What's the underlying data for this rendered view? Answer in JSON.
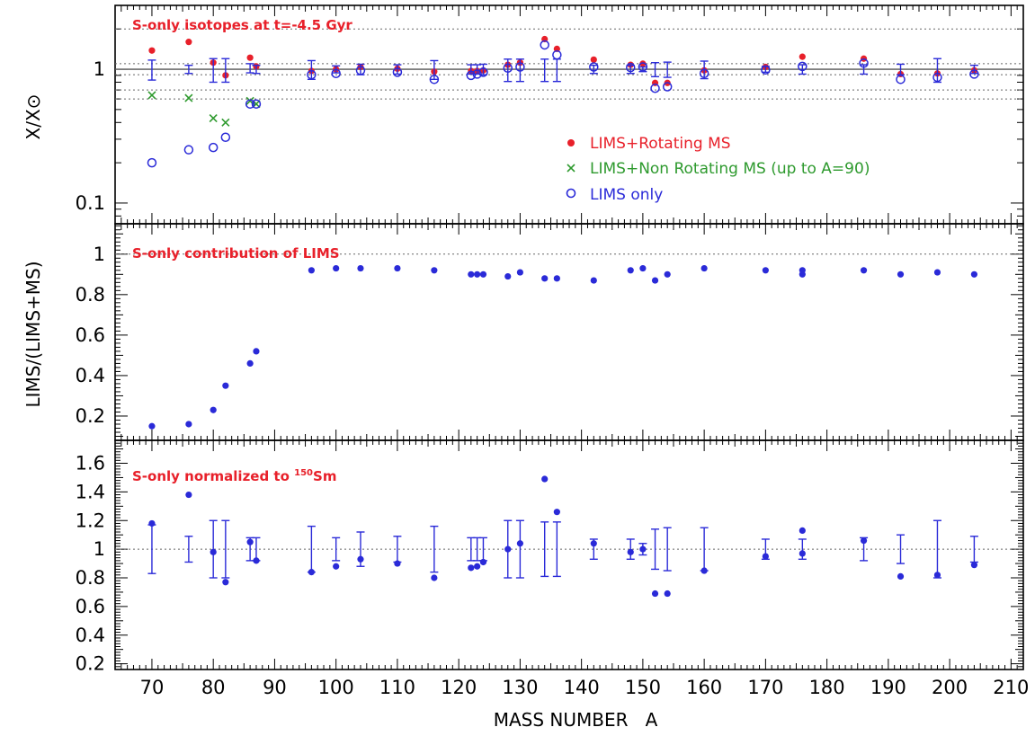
{
  "chart_data": {
    "type": "scatter",
    "shared_x": {
      "label": "MASS NUMBER   A",
      "range": [
        64,
        212
      ],
      "ticks": [
        70,
        80,
        90,
        100,
        110,
        120,
        130,
        140,
        150,
        160,
        170,
        180,
        190,
        200,
        210
      ]
    },
    "panels": [
      {
        "id": "top",
        "title": "S-only isotopes at t=-4.5 Gyr",
        "ylabel": "X/X⊙",
        "yscale": "log",
        "ylim": [
          0.07,
          3.0
        ],
        "ytick_labels": [
          {
            "value": 0.1,
            "label": "0.1"
          },
          {
            "value": 1,
            "label": "1"
          }
        ],
        "reference_lines": [
          2.0,
          1.1,
          1.0,
          0.91,
          0.7,
          0.6
        ],
        "legend": {
          "placement": "center-right",
          "entries": [
            {
              "series": "rot",
              "label": "LIMS+Rotating MS"
            },
            {
              "series": "nonrot",
              "label": "LIMS+Non Rotating MS (up to A=90)"
            },
            {
              "series": "lims",
              "label": "LIMS only"
            }
          ]
        },
        "series": [
          {
            "key": "rot",
            "marker": "dot",
            "color": "#e8202a",
            "x": [
              70,
              76,
              80,
              82,
              86,
              87,
              96,
              100,
              104,
              110,
              116,
              122,
              123,
              124,
              128,
              130,
              134,
              136,
              142,
              148,
              150,
              152,
              154,
              160,
              170,
              176,
              186,
              192,
              198,
              204
            ],
            "y": [
              1.38,
              1.6,
              1.12,
              0.9,
              1.22,
              1.05,
              0.97,
              1.0,
              1.04,
              1.01,
              0.96,
              0.97,
              0.97,
              0.98,
              1.08,
              1.12,
              1.68,
              1.42,
              1.18,
              1.08,
              1.1,
              0.79,
              0.79,
              0.98,
              1.04,
              1.24,
              1.2,
              0.92,
              0.93,
              0.98
            ]
          },
          {
            "key": "nonrot",
            "marker": "cross",
            "color": "#2e9a2e",
            "x": [
              70,
              76,
              80,
              82,
              86,
              87
            ],
            "y": [
              0.64,
              0.61,
              0.43,
              0.4,
              0.58,
              0.55
            ]
          },
          {
            "key": "lims",
            "marker": "open-circle",
            "color": "#2a2ad8",
            "x": [
              70,
              76,
              80,
              82,
              86,
              87,
              96,
              100,
              104,
              110,
              116,
              122,
              123,
              124,
              128,
              130,
              134,
              136,
              142,
              148,
              150,
              152,
              154,
              160,
              170,
              176,
              186,
              192,
              198,
              204
            ],
            "y": [
              0.2,
              0.25,
              0.26,
              0.31,
              0.55,
              0.55,
              0.91,
              0.93,
              0.98,
              0.95,
              0.84,
              0.9,
              0.92,
              0.95,
              1.02,
              1.04,
              1.52,
              1.28,
              1.04,
              1.03,
              1.04,
              0.72,
              0.74,
              0.93,
              0.99,
              1.05,
              1.11,
              0.84,
              0.87,
              0.92
            ]
          },
          {
            "key": "err",
            "marker": "errorbar",
            "color": "#2a2ad8",
            "x": [
              70,
              76,
              80,
              82,
              86,
              87,
              96,
              100,
              104,
              110,
              116,
              122,
              123,
              124,
              128,
              130,
              134,
              136,
              142,
              148,
              150,
              152,
              154,
              160,
              170,
              176,
              186,
              192,
              198,
              204
            ],
            "y": [
              1.0,
              1.0,
              1.0,
              1.0,
              1.02,
              1.0,
              1.0,
              1.0,
              1.0,
              1.0,
              1.0,
              1.0,
              1.0,
              1.0,
              1.0,
              1.0,
              1.0,
              1.0,
              1.0,
              1.0,
              1.0,
              1.0,
              1.0,
              1.0,
              1.0,
              1.0,
              1.0,
              1.0,
              1.0,
              1.0
            ],
            "err": [
              0.17,
              0.07,
              0.2,
              0.2,
              0.08,
              0.07,
              0.16,
              0.06,
              0.09,
              0.08,
              0.16,
              0.08,
              0.08,
              0.09,
              0.19,
              0.19,
              0.19,
              0.19,
              0.07,
              0.07,
              0.04,
              0.12,
              0.13,
              0.15,
              0.05,
              0.08,
              0.08,
              0.09,
              0.2,
              0.07
            ]
          }
        ]
      },
      {
        "id": "middle",
        "title": "S-only contribution of LIMS",
        "ylabel": "LIMS/(LIMS+MS)",
        "yscale": "linear",
        "ylim": [
          0.08,
          1.15
        ],
        "yticks": [
          0.2,
          0.4,
          0.6,
          0.8,
          1
        ],
        "ytick_labels": [
          "0.2",
          "0.4",
          "0.6",
          "0.8",
          "1"
        ],
        "reference_lines": [
          1.0
        ],
        "series": [
          {
            "key": "frac",
            "marker": "dot",
            "color": "#2a2ad8",
            "x": [
              70,
              76,
              80,
              82,
              86,
              87,
              96,
              100,
              104,
              110,
              116,
              122,
              123,
              124,
              128,
              130,
              134,
              136,
              142,
              148,
              150,
              152,
              154,
              160,
              170,
              176,
              176,
              186,
              192,
              198,
              204
            ],
            "y": [
              0.15,
              0.16,
              0.23,
              0.35,
              0.46,
              0.52,
              0.92,
              0.93,
              0.93,
              0.93,
              0.92,
              0.9,
              0.9,
              0.9,
              0.89,
              0.91,
              0.88,
              0.88,
              0.87,
              0.92,
              0.93,
              0.87,
              0.9,
              0.93,
              0.92,
              0.9,
              0.92,
              0.92,
              0.9,
              0.91,
              0.9
            ]
          }
        ]
      },
      {
        "id": "bottom",
        "title": "S-only normalized to ",
        "title_superscript": "150",
        "title_suffix": "Sm",
        "ylabel": "",
        "yscale": "linear",
        "ylim": [
          0.16,
          1.76
        ],
        "yticks": [
          0.2,
          0.4,
          0.6,
          0.8,
          1,
          1.2,
          1.4,
          1.6
        ],
        "ytick_labels": [
          "0.2",
          "0.4",
          "0.6",
          "0.8",
          "1",
          "1.2",
          "1.4",
          "1.6"
        ],
        "reference_lines": [
          1.0
        ],
        "series": [
          {
            "key": "norm",
            "marker": "dot",
            "color": "#2a2ad8",
            "x": [
              70,
              76,
              80,
              82,
              86,
              87,
              96,
              100,
              104,
              110,
              116,
              122,
              123,
              124,
              128,
              130,
              134,
              136,
              142,
              148,
              150,
              152,
              154,
              160,
              170,
              176,
              176,
              186,
              192,
              198,
              204
            ],
            "y": [
              1.18,
              1.38,
              0.98,
              0.77,
              1.05,
              0.92,
              0.84,
              0.88,
              0.93,
              0.9,
              0.8,
              0.87,
              0.88,
              0.91,
              1.0,
              1.04,
              1.49,
              1.26,
              1.04,
              0.98,
              1.0,
              0.69,
              0.69,
              0.85,
              0.95,
              0.97,
              1.13,
              1.06,
              0.81,
              0.82,
              0.89
            ]
          },
          {
            "key": "normerr",
            "marker": "errorbar",
            "color": "#2a2ad8",
            "x": [
              70,
              76,
              80,
              82,
              86,
              87,
              96,
              100,
              104,
              110,
              116,
              122,
              123,
              124,
              128,
              130,
              134,
              136,
              142,
              148,
              150,
              152,
              154,
              160,
              170,
              176,
              186,
              192,
              198,
              204
            ],
            "y": [
              1.0,
              1.0,
              1.0,
              1.0,
              1.0,
              1.0,
              1.0,
              1.0,
              1.0,
              1.0,
              1.0,
              1.0,
              1.0,
              1.0,
              1.0,
              1.0,
              1.0,
              1.0,
              1.0,
              1.0,
              1.0,
              1.0,
              1.0,
              1.0,
              1.0,
              1.0,
              1.0,
              1.0,
              1.0,
              1.0
            ],
            "err": [
              0.17,
              0.09,
              0.2,
              0.2,
              0.08,
              0.08,
              0.16,
              0.08,
              0.12,
              0.09,
              0.16,
              0.08,
              0.08,
              0.08,
              0.2,
              0.2,
              0.19,
              0.19,
              0.07,
              0.07,
              0.04,
              0.14,
              0.15,
              0.15,
              0.07,
              0.07,
              0.08,
              0.1,
              0.2,
              0.09
            ]
          }
        ]
      }
    ],
    "colors": {
      "red": "#e8202a",
      "green": "#2e9a2e",
      "blue": "#2a2ad8",
      "frame": "#000000"
    }
  }
}
